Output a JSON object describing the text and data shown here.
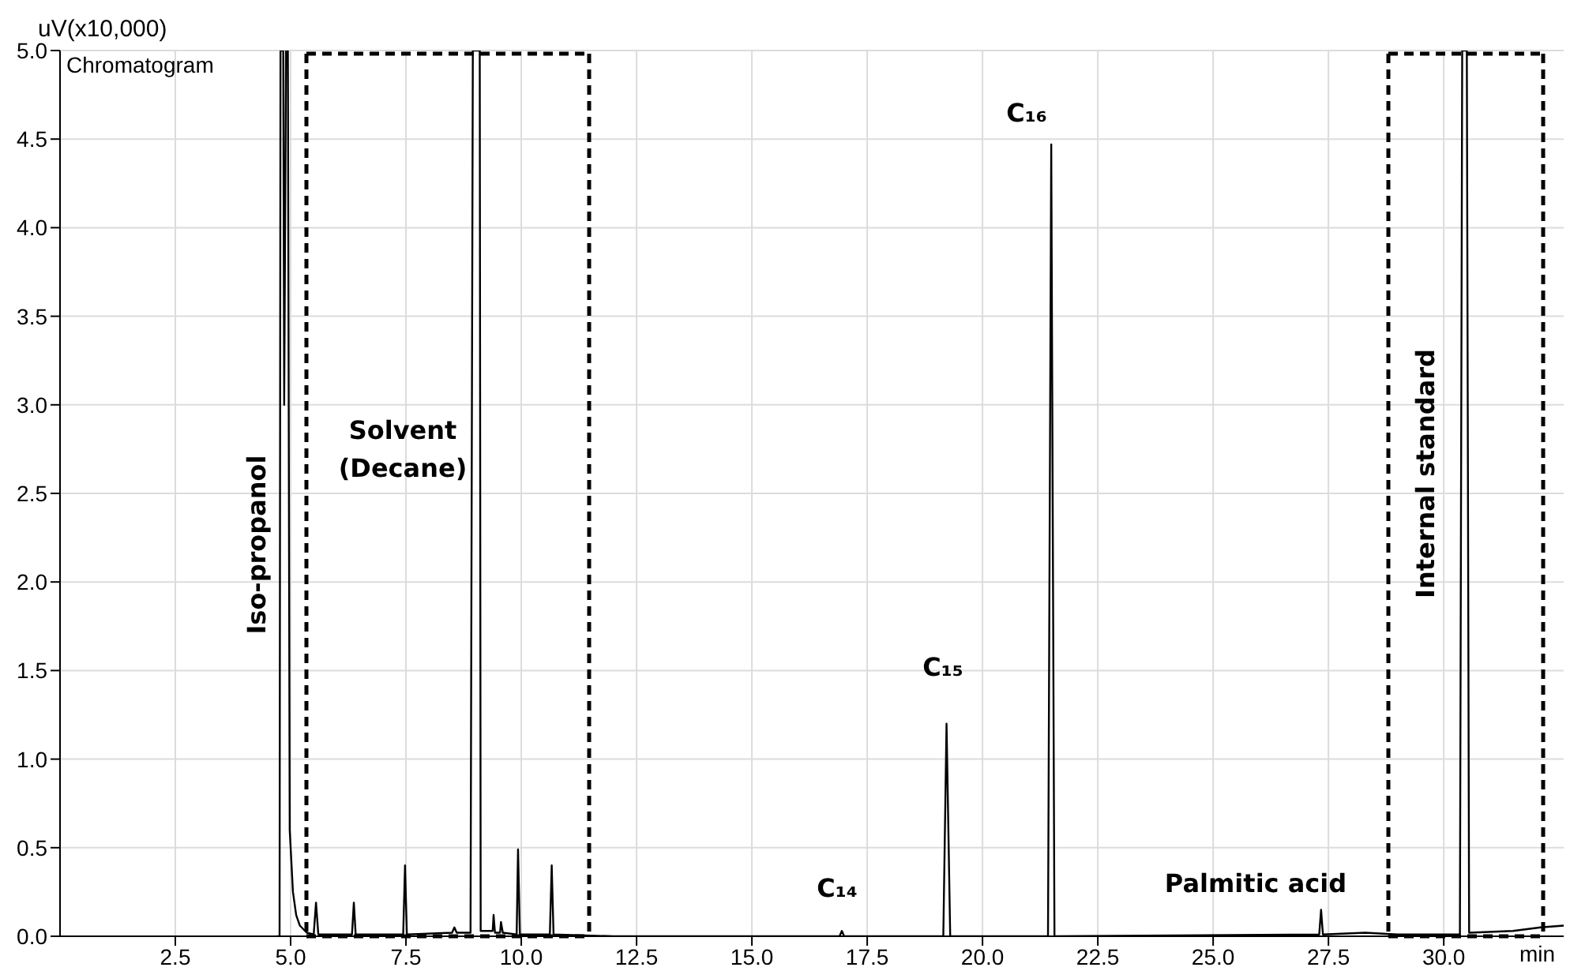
{
  "chart_data": {
    "type": "line",
    "ylabel": "uV(x10,000)",
    "xlabel": "min",
    "xlim": [
      0,
      32.6
    ],
    "xticks": [
      {
        "value": 2.5,
        "label": "2.5"
      },
      {
        "value": 5,
        "label": "5.0"
      },
      {
        "value": 7.5,
        "label": "7.5"
      },
      {
        "value": 10,
        "label": "10.0"
      },
      {
        "value": 12.5,
        "label": "12.5"
      },
      {
        "value": 15,
        "label": "15.0"
      },
      {
        "value": 17.5,
        "label": "17.5"
      },
      {
        "value": 20,
        "label": "20.0"
      },
      {
        "value": 22.5,
        "label": "22.5"
      },
      {
        "value": 25,
        "label": "25.0"
      },
      {
        "value": 27.5,
        "label": "27.5"
      },
      {
        "value": 30,
        "label": "30.0"
      }
    ],
    "ylim": [
      0,
      5
    ],
    "yticks": [
      {
        "value": 0,
        "label": "0.0"
      },
      {
        "value": 0.5,
        "label": "0.5"
      },
      {
        "value": 1,
        "label": "1.0"
      },
      {
        "value": 1.5,
        "label": "1.5"
      },
      {
        "value": 2,
        "label": "2.0"
      },
      {
        "value": 2.5,
        "label": "2.5"
      },
      {
        "value": 3,
        "label": "3.0"
      },
      {
        "value": 3.5,
        "label": "3.5"
      },
      {
        "value": 4,
        "label": "4.0"
      },
      {
        "value": 4.5,
        "label": "4.5"
      },
      {
        "value": 5,
        "label": "5.0"
      }
    ],
    "grid": true,
    "marker": "none",
    "line_style": "solid",
    "series": [
      {
        "color": "#000000",
        "x": [
          4.7,
          4.76,
          4.78,
          4.84,
          4.86,
          4.9,
          4.94,
          4.98,
          5.05,
          5.12,
          5.2,
          5.35,
          5.5,
          5.55,
          5.6,
          6.33,
          6.37,
          6.41,
          7.44,
          7.48,
          7.52,
          8.5,
          8.55,
          8.6,
          8.9,
          8.95,
          9.0,
          9.1,
          9.12,
          9.15,
          9.38,
          9.4,
          9.43,
          9.54,
          9.56,
          9.6,
          9.9,
          9.93,
          9.97,
          10.62,
          10.66,
          10.7,
          12.0,
          16.9,
          16.95,
          17.0,
          19.15,
          19.22,
          19.3,
          21.42,
          21.49,
          21.56,
          27.3,
          27.34,
          27.38,
          28.3,
          29.0,
          30.35,
          30.4,
          30.5,
          30.55,
          31.5,
          32.1,
          32.6
        ],
        "values": [
          0,
          0,
          5,
          5,
          3,
          5,
          5,
          0.6,
          0.25,
          0.12,
          0.06,
          0.02,
          0.01,
          0.19,
          0.01,
          0.01,
          0.19,
          0.01,
          0.01,
          0.4,
          0.01,
          0.02,
          0.05,
          0.02,
          0.02,
          5,
          5,
          5,
          0.03,
          0.03,
          0.03,
          0.12,
          0.02,
          0.02,
          0.08,
          0.02,
          0.01,
          0.49,
          0.01,
          0.01,
          0.4,
          0.01,
          0,
          0,
          0.03,
          0,
          0,
          1.2,
          0,
          0,
          4.47,
          0,
          0.01,
          0.15,
          0.01,
          0.02,
          0.01,
          0.01,
          5,
          5,
          0.02,
          0.03,
          0.05,
          0.06
        ]
      }
    ],
    "annotations": [
      "Chromatogram",
      "Solvent (Decane)",
      "Iso-propanol",
      "Internal standard",
      "C₁₄",
      "C₁₅",
      "C₁₆",
      "Palmitic acid"
    ]
  }
}
